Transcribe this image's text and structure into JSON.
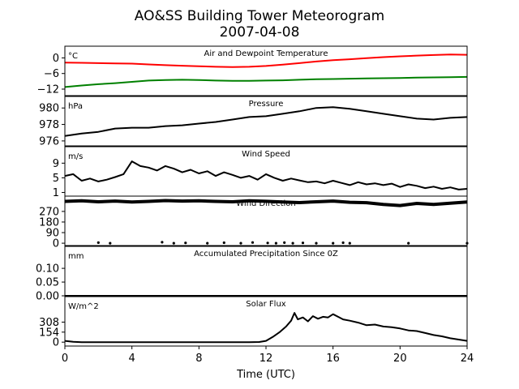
{
  "title": "AO&SS Building Tower Meteorogram",
  "subtitle": "2007-04-08",
  "chart_data": {
    "type": "line",
    "xlabel": "Time (UTC)",
    "xlim": [
      0,
      24
    ],
    "xticks": [
      0,
      4,
      8,
      12,
      16,
      20,
      24
    ],
    "panels": [
      {
        "id": "temperature",
        "title": "Air and Dewpoint Temperature",
        "unit": "°C",
        "ylim": [
          -14.5,
          4.5
        ],
        "yticks": [
          0,
          -6,
          -12
        ],
        "series": [
          {
            "color": "#ff0000",
            "x": [
              0,
              1,
              2,
              3,
              4,
              5,
              6,
              7,
              8,
              9,
              10,
              11,
              12,
              13,
              14,
              15,
              16,
              17,
              18,
              19,
              20,
              21,
              22,
              23,
              24
            ],
            "y": [
              -1.8,
              -1.9,
              -2.0,
              -2.1,
              -2.2,
              -2.5,
              -2.8,
              -3.0,
              -3.2,
              -3.4,
              -3.5,
              -3.4,
              -3.1,
              -2.6,
              -2.0,
              -1.4,
              -0.9,
              -0.5,
              -0.1,
              0.3,
              0.6,
              0.9,
              1.1,
              1.3,
              1.2
            ]
          },
          {
            "color": "#008000",
            "x": [
              0,
              1,
              2,
              3,
              4,
              5,
              6,
              7,
              8,
              9,
              10,
              11,
              12,
              13,
              14,
              15,
              16,
              17,
              18,
              19,
              20,
              21,
              22,
              23,
              24
            ],
            "y": [
              -11.2,
              -10.6,
              -10.1,
              -9.7,
              -9.2,
              -8.7,
              -8.5,
              -8.4,
              -8.5,
              -8.7,
              -8.8,
              -8.8,
              -8.7,
              -8.6,
              -8.4,
              -8.2,
              -8.1,
              -8.0,
              -7.9,
              -7.8,
              -7.7,
              -7.6,
              -7.5,
              -7.4,
              -7.3
            ]
          }
        ]
      },
      {
        "id": "pressure",
        "title": "Pressure",
        "unit": "hPa",
        "ylim": [
          975.4,
          981.4
        ],
        "yticks": [
          980,
          978,
          976
        ],
        "series": [
          {
            "color": "#000000",
            "x": [
              0,
              1,
              2,
              3,
              4,
              5,
              6,
              7,
              8,
              9,
              10,
              11,
              12,
              13,
              14,
              15,
              16,
              17,
              18,
              19,
              20,
              21,
              22,
              23,
              24
            ],
            "y": [
              976.6,
              976.9,
              977.1,
              977.5,
              977.6,
              977.6,
              977.8,
              977.9,
              978.1,
              978.3,
              978.6,
              978.9,
              979.0,
              979.3,
              979.6,
              980.0,
              980.1,
              979.9,
              979.6,
              979.3,
              979.0,
              978.7,
              978.6,
              978.8,
              978.9
            ]
          }
        ]
      },
      {
        "id": "wind_speed",
        "title": "Wind Speed",
        "unit": "m/s",
        "ylim": [
          0,
          13.5
        ],
        "yticks": [
          9,
          5,
          1
        ],
        "series": [
          {
            "color": "#000000",
            "x": [
              0,
              0.5,
              1,
              1.5,
              2,
              2.5,
              3,
              3.5,
              4,
              4.5,
              5,
              5.5,
              6,
              6.5,
              7,
              7.5,
              8,
              8.5,
              9,
              9.5,
              10,
              10.5,
              11,
              11.5,
              12,
              12.5,
              13,
              13.5,
              14,
              14.5,
              15,
              15.5,
              16,
              16.5,
              17,
              17.5,
              18,
              18.5,
              19,
              19.5,
              20,
              20.5,
              21,
              21.5,
              22,
              22.5,
              23,
              23.5,
              24
            ],
            "y": [
              5.5,
              6.0,
              4.2,
              4.8,
              4.0,
              4.5,
              5.2,
              6.0,
              9.5,
              8.2,
              7.8,
              7.0,
              8.2,
              7.5,
              6.5,
              7.2,
              6.2,
              6.8,
              5.5,
              6.5,
              5.8,
              5.0,
              5.5,
              4.5,
              6.0,
              5.0,
              4.2,
              4.8,
              4.3,
              3.8,
              4.0,
              3.5,
              4.2,
              3.6,
              3.0,
              3.8,
              3.2,
              3.5,
              3.0,
              3.4,
              2.5,
              3.2,
              2.8,
              2.2,
              2.6,
              2.0,
              2.4,
              1.8,
              2.0
            ]
          }
        ]
      },
      {
        "id": "wind_direction",
        "title": "Wind Direction",
        "unit": "",
        "ylim": [
          -20,
          400
        ],
        "yticks": [
          270,
          180,
          90,
          0
        ],
        "series": [
          {
            "color": "#000000",
            "x": [
              0,
              1,
              2,
              3,
              4,
              5,
              6,
              7,
              8,
              9,
              10,
              11,
              12,
              13,
              14,
              15,
              16,
              17,
              18,
              19,
              20,
              21,
              22,
              23,
              24
            ],
            "y": [
              355,
              360,
              352,
              358,
              350,
              355,
              362,
              358,
              360,
              355,
              352,
              360,
              356,
              350,
              345,
              352,
              358,
              348,
              344,
              330,
              320,
              338,
              330,
              340,
              350
            ]
          },
          {
            "color": "#000000",
            "x": [
              2,
              2.7,
              5.8,
              6.5,
              7.2,
              8.5,
              9.5,
              10.5,
              11.2,
              12.1,
              12.6,
              13.1,
              13.6,
              14.2,
              15.0,
              16.0,
              16.6,
              17.0,
              20.5,
              24.0
            ],
            "y": [
              5,
              0,
              8,
              0,
              3,
              0,
              4,
              0,
              6,
              2,
              0,
              5,
              0,
              3,
              0,
              0,
              4,
              0,
              0,
              0
            ]
          }
        ]
      },
      {
        "id": "precipitation",
        "title": "Accumulated Precipitation Since 0Z",
        "unit": "mm",
        "ylim": [
          0,
          0.18
        ],
        "yticks": [
          0.1,
          0.05,
          0.0
        ],
        "series": [
          {
            "color": "#000000",
            "x": [
              0,
              24
            ],
            "y": [
              0,
              0
            ]
          }
        ]
      },
      {
        "id": "solar_flux",
        "title": "Solar Flux",
        "unit": "W/m^2",
        "ylim": [
          -60,
          700
        ],
        "yticks": [
          308,
          154,
          0
        ],
        "series": [
          {
            "color": "#000000",
            "x": [
              0,
              0.5,
              1,
              2,
              4,
              6,
              8,
              10,
              11,
              11.6,
              12,
              12.4,
              12.8,
              13.2,
              13.5,
              13.7,
              13.9,
              14.2,
              14.5,
              14.8,
              15.1,
              15.4,
              15.7,
              16,
              16.3,
              16.6,
              17,
              17.5,
              18,
              18.5,
              19,
              19.5,
              20,
              20.5,
              21,
              21.5,
              22,
              22.5,
              23,
              23.5,
              24
            ],
            "y": [
              20,
              5,
              0,
              0,
              0,
              0,
              0,
              0,
              0,
              2,
              20,
              80,
              150,
              240,
              330,
              450,
              350,
              380,
              320,
              400,
              360,
              390,
              380,
              430,
              390,
              350,
              330,
              300,
              260,
              270,
              240,
              230,
              210,
              180,
              170,
              140,
              110,
              90,
              60,
              40,
              20
            ]
          }
        ]
      }
    ]
  }
}
